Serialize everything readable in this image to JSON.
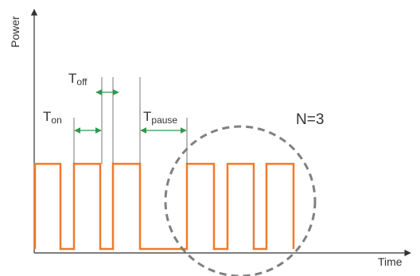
{
  "diagram": {
    "axes": {
      "y_label": "Power",
      "x_label": "Time"
    },
    "annotations": {
      "t_on": {
        "main": "T",
        "sub": "on"
      },
      "t_off": {
        "main": "T",
        "sub": "off"
      },
      "t_pause": {
        "main": "T",
        "sub": "pause"
      },
      "burst_count": "N=3"
    },
    "colors": {
      "signal": "#f07a2a",
      "arrow": "#2e9a4a",
      "axis": "#333333",
      "circle": "#808080",
      "marker_line": "#555555"
    }
  }
}
